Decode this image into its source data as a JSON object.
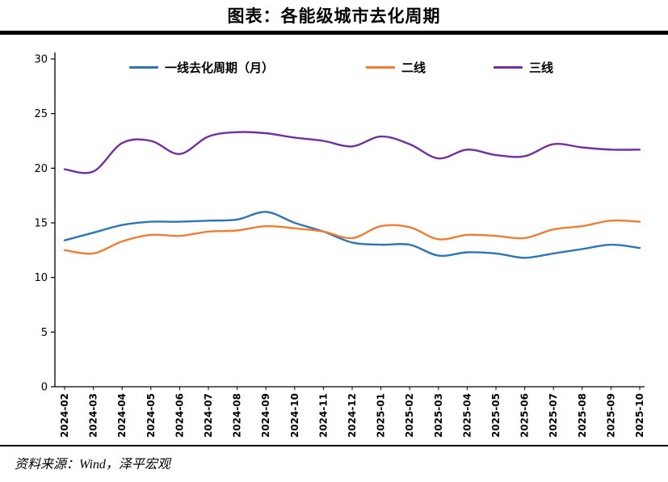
{
  "title": "图表：各能级城市去化周期",
  "source": "资料来源：Wind，泽平宏观",
  "chart_data": {
    "type": "line",
    "title": "图表：各能级城市去化周期",
    "xlabel": "",
    "ylabel": "",
    "ylim": [
      0,
      30
    ],
    "yticks": [
      0,
      5,
      10,
      15,
      20,
      25,
      30
    ],
    "grid": false,
    "legend_position": "top-inside",
    "line_style": "smooth",
    "axis_color": "#000000",
    "categories": [
      "2024-02",
      "2024-03",
      "2024-04",
      "2024-05",
      "2024-06",
      "2024-07",
      "2024-08",
      "2024-09",
      "2024-10",
      "2024-11",
      "2024-12",
      "2025-01",
      "2025-02",
      "2025-03",
      "2025-04",
      "2025-05",
      "2025-06",
      "2025-07",
      "2025-08",
      "2025-09",
      "2025-10"
    ],
    "series": [
      {
        "name": "一线去化周期（月）",
        "color": "#2e75b6",
        "values": [
          13.4,
          14.1,
          14.8,
          15.1,
          15.1,
          15.2,
          15.3,
          16.0,
          15.0,
          14.2,
          13.2,
          13.0,
          13.0,
          12.0,
          12.3,
          12.2,
          11.8,
          12.2,
          12.6,
          13.0,
          12.7
        ]
      },
      {
        "name": "二线",
        "color": "#ed7d31",
        "values": [
          12.5,
          12.2,
          13.3,
          13.9,
          13.8,
          14.2,
          14.3,
          14.7,
          14.5,
          14.2,
          13.6,
          14.7,
          14.6,
          13.5,
          13.9,
          13.8,
          13.6,
          14.4,
          14.7,
          15.2,
          15.1
        ]
      },
      {
        "name": "三线",
        "color": "#7030a0",
        "values": [
          19.9,
          19.7,
          22.3,
          22.5,
          21.3,
          22.9,
          23.3,
          23.2,
          22.8,
          22.5,
          22.0,
          22.9,
          22.2,
          20.9,
          21.7,
          21.2,
          21.1,
          22.2,
          21.9,
          21.7,
          21.7
        ]
      }
    ]
  }
}
